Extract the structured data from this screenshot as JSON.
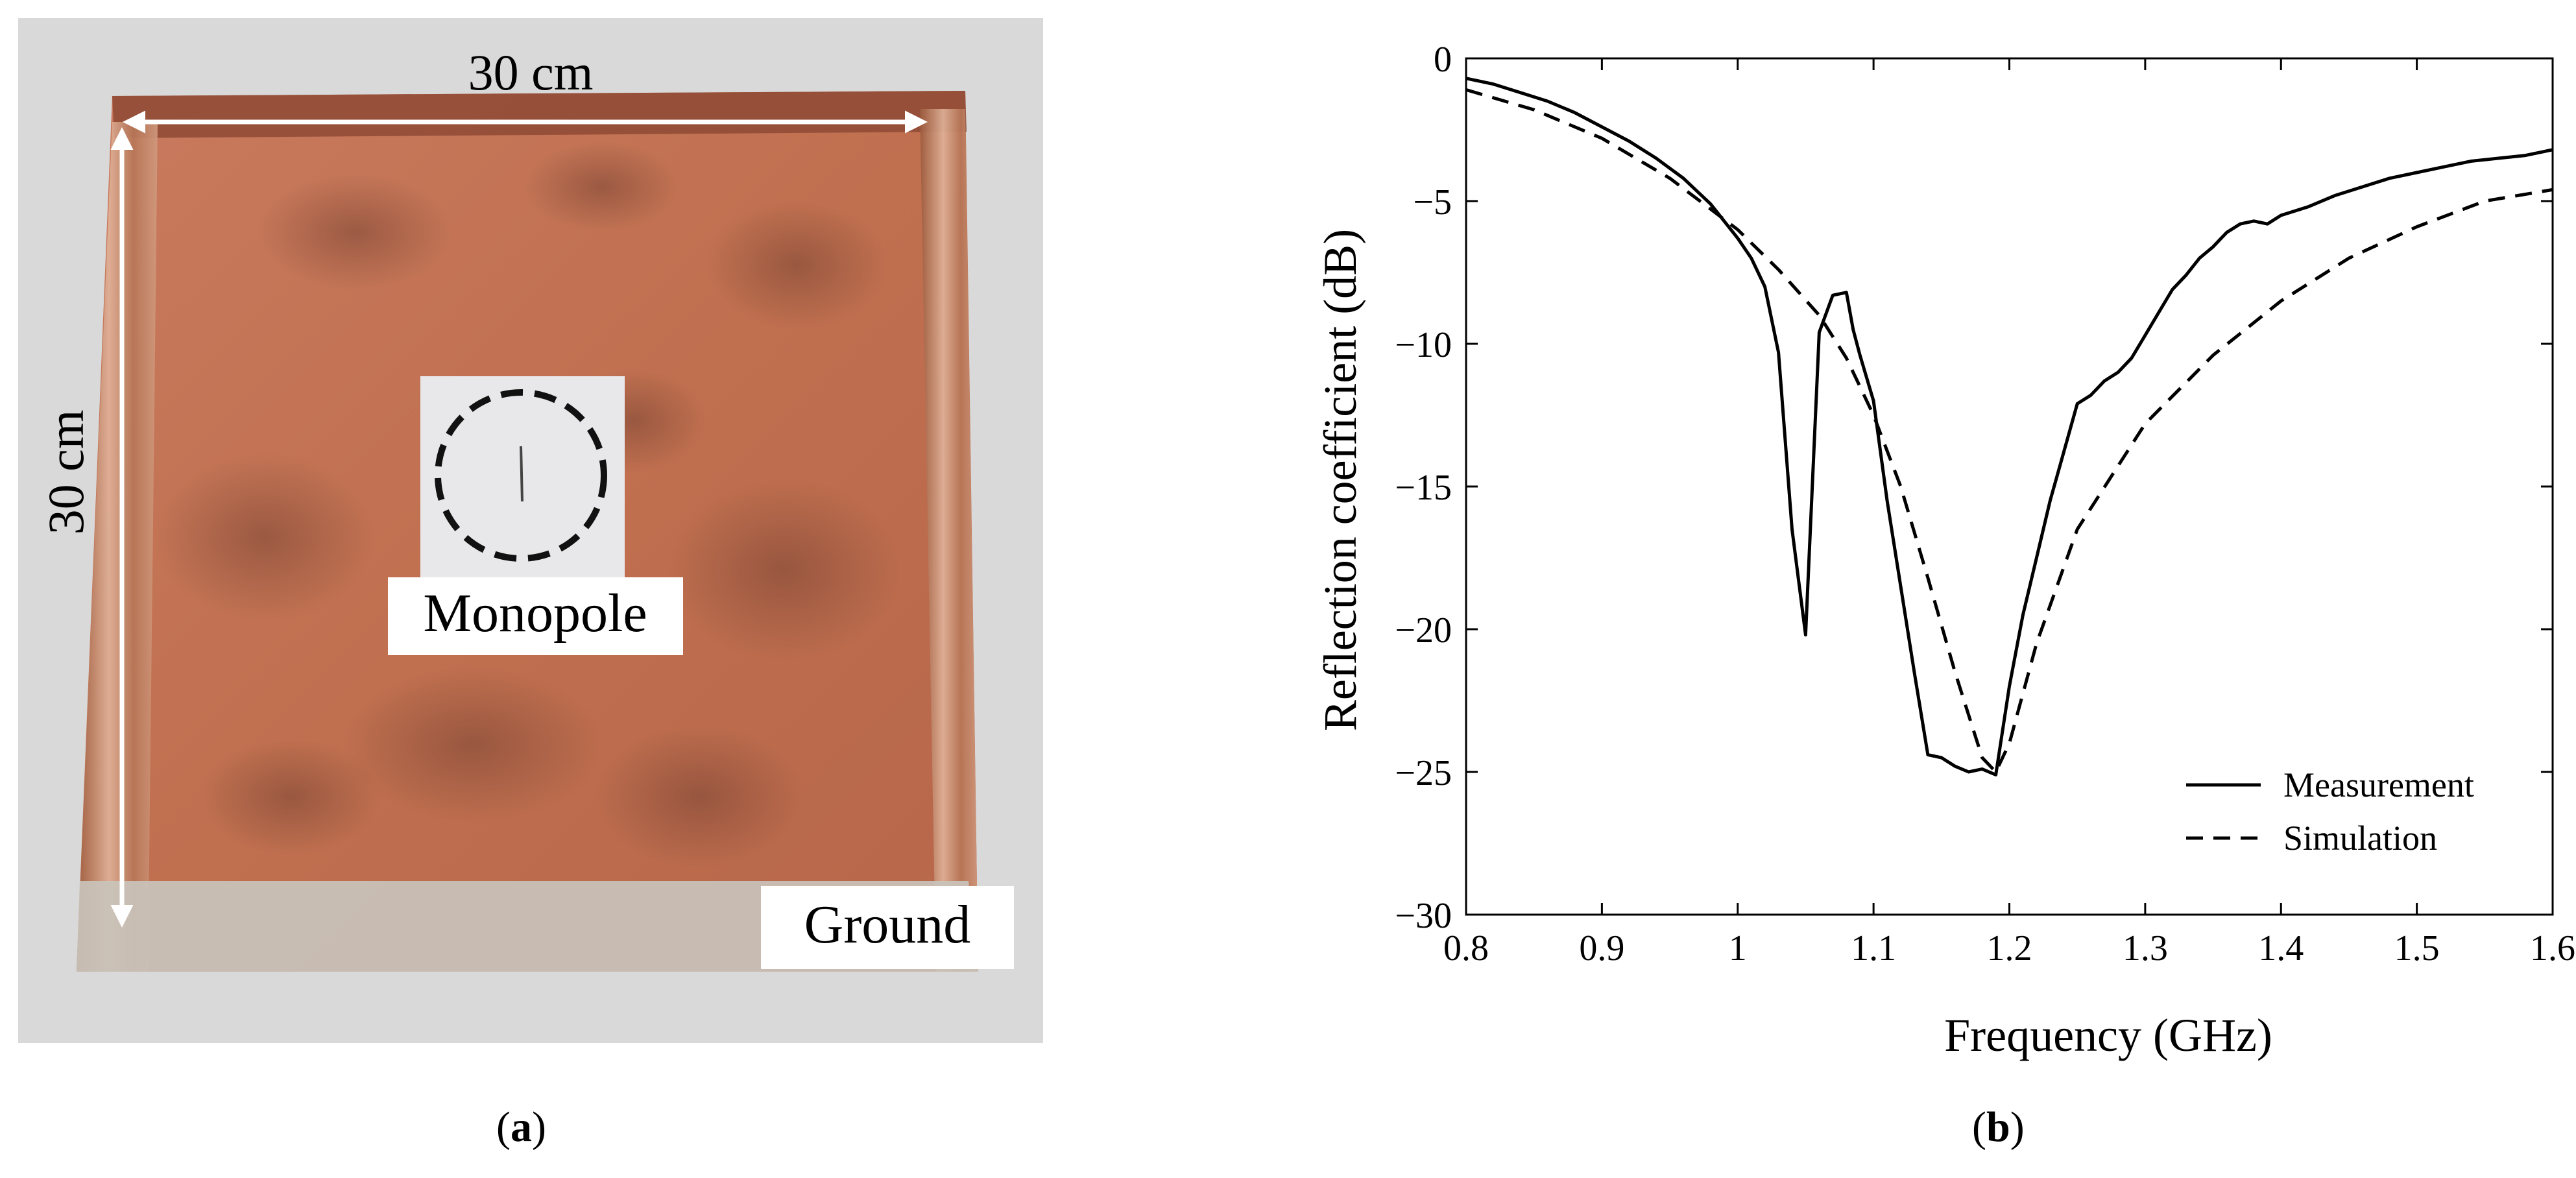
{
  "photo": {
    "label_width": "30 cm",
    "label_height": "30 cm",
    "label_monopole": "Monopole",
    "label_ground": "Ground",
    "colors": {
      "copper": "#c8765a",
      "copper_dark": "#8e4a35",
      "background": "#d9d9d9",
      "tape": "#c9c3bb"
    }
  },
  "captions": {
    "a": "a",
    "b": "b"
  },
  "chart_data": {
    "type": "line",
    "xlabel": "Frequency (GHz)",
    "ylabel": "Reflection coefficient (dB)",
    "xlim": [
      0.8,
      1.6
    ],
    "ylim": [
      -30,
      0
    ],
    "xticks": [
      0.8,
      0.9,
      1.0,
      1.1,
      1.2,
      1.3,
      1.4,
      1.5,
      1.6
    ],
    "xtick_labels": [
      "0.8",
      "0.9",
      "1",
      "1.1",
      "1.2",
      "1.3",
      "1.4",
      "1.5",
      "1.6"
    ],
    "yticks": [
      0,
      -5,
      -10,
      -15,
      -20,
      -25,
      -30
    ],
    "ytick_labels": [
      "0",
      "−5",
      "−10",
      "−15",
      "−20",
      "−25",
      "−30"
    ],
    "grid": false,
    "legend_position": "bottom-right",
    "series": [
      {
        "name": "Measurement",
        "style": "solid",
        "x": [
          0.8,
          0.82,
          0.84,
          0.86,
          0.88,
          0.9,
          0.92,
          0.94,
          0.96,
          0.98,
          1.0,
          1.01,
          1.02,
          1.03,
          1.04,
          1.05,
          1.06,
          1.07,
          1.08,
          1.085,
          1.09,
          1.1,
          1.11,
          1.12,
          1.13,
          1.14,
          1.15,
          1.16,
          1.17,
          1.18,
          1.19,
          1.2,
          1.21,
          1.22,
          1.23,
          1.24,
          1.25,
          1.26,
          1.27,
          1.28,
          1.29,
          1.3,
          1.31,
          1.32,
          1.33,
          1.34,
          1.35,
          1.36,
          1.37,
          1.38,
          1.39,
          1.4,
          1.42,
          1.44,
          1.46,
          1.48,
          1.5,
          1.52,
          1.54,
          1.56,
          1.58,
          1.6
        ],
        "values": [
          -0.7,
          -0.9,
          -1.2,
          -1.5,
          -1.9,
          -2.4,
          -2.9,
          -3.5,
          -4.2,
          -5.1,
          -6.3,
          -7.0,
          -8.0,
          -10.3,
          -16.5,
          -20.2,
          -9.6,
          -8.3,
          -8.2,
          -9.5,
          -10.4,
          -12.0,
          -15.5,
          -18.5,
          -21.5,
          -24.4,
          -24.5,
          -24.8,
          -25.0,
          -24.9,
          -25.1,
          -22.0,
          -19.5,
          -17.5,
          -15.5,
          -13.8,
          -12.1,
          -11.8,
          -11.3,
          -11.0,
          -10.5,
          -9.7,
          -8.9,
          -8.1,
          -7.6,
          -7.0,
          -6.6,
          -6.1,
          -5.8,
          -5.7,
          -5.8,
          -5.5,
          -5.2,
          -4.8,
          -4.5,
          -4.2,
          -4.0,
          -3.8,
          -3.6,
          -3.5,
          -3.4,
          -3.2
        ]
      },
      {
        "name": "Simulation",
        "style": "dashed",
        "x": [
          0.8,
          0.85,
          0.9,
          0.95,
          1.0,
          1.03,
          1.06,
          1.08,
          1.1,
          1.12,
          1.14,
          1.16,
          1.18,
          1.19,
          1.2,
          1.22,
          1.25,
          1.3,
          1.35,
          1.4,
          1.45,
          1.5,
          1.55,
          1.6
        ],
        "values": [
          -1.1,
          -1.8,
          -2.8,
          -4.2,
          -6.0,
          -7.4,
          -9.0,
          -10.5,
          -12.5,
          -15.0,
          -18.2,
          -21.5,
          -24.5,
          -25.0,
          -24.0,
          -20.5,
          -16.5,
          -12.8,
          -10.4,
          -8.5,
          -7.0,
          -5.9,
          -5.0,
          -4.6
        ]
      }
    ]
  }
}
